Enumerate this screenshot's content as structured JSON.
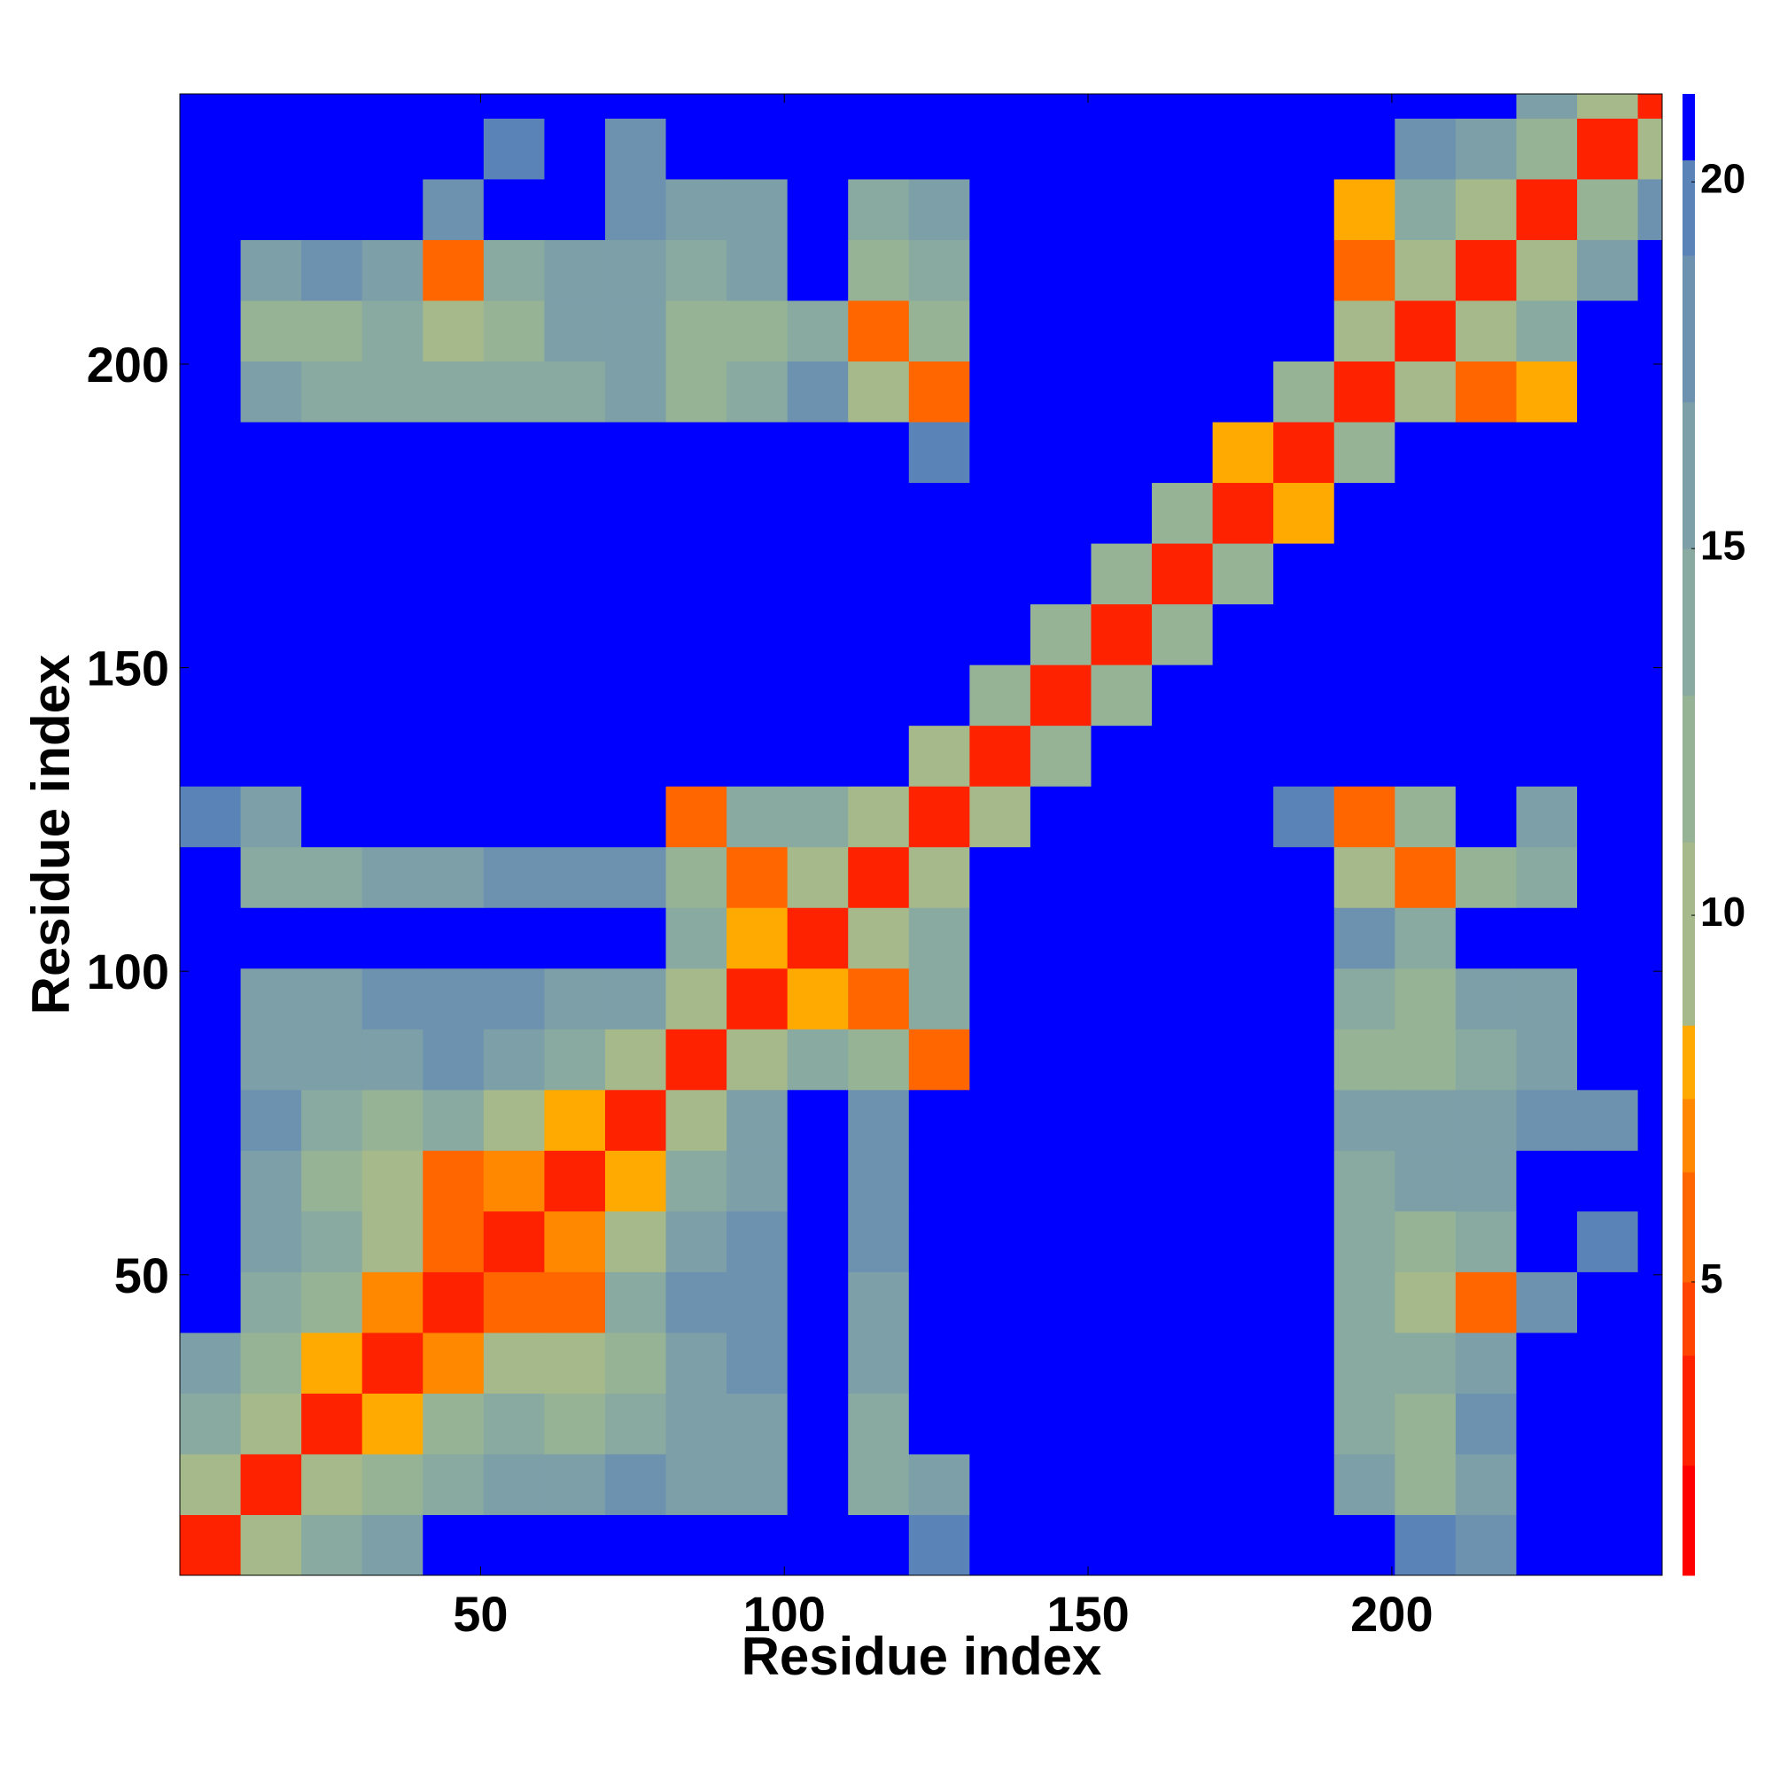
{
  "chart_data": {
    "type": "heatmap",
    "xlabel": "Residue index",
    "ylabel": "Residue index",
    "xlim": [
      0.5,
      244.5
    ],
    "ylim": [
      0.5,
      244.5
    ],
    "xticks": [
      50,
      100,
      150,
      200
    ],
    "yticks": [
      50,
      100,
      150,
      200
    ],
    "xbins": [
      0.5,
      10.5,
      20.5,
      30.5,
      40.5,
      50.5,
      60.5,
      70.5,
      80.5,
      90.5,
      100.5,
      110.5,
      120.5,
      130.5,
      140.5,
      150.5,
      160.5,
      170.5,
      180.5,
      190.5,
      200.5,
      210.5,
      220.5,
      230.5,
      240.5,
      244.5
    ],
    "ybins": [
      0.5,
      10.5,
      20.5,
      30.5,
      40.5,
      50.5,
      60.5,
      70.5,
      80.5,
      90.5,
      100.5,
      110.5,
      120.5,
      130.5,
      140.5,
      150.5,
      160.5,
      170.5,
      180.5,
      190.5,
      200.5,
      210.5,
      220.5,
      230.5,
      240.5,
      244.5
    ],
    "z": [
      [
        3,
        10,
        13,
        16,
        21,
        21,
        21,
        21,
        21,
        21,
        21,
        21,
        19,
        21,
        21,
        21,
        21,
        21,
        21,
        21,
        19,
        18,
        21,
        21,
        21
      ],
      [
        10,
        3,
        9,
        12,
        14,
        15,
        16,
        17,
        16,
        15,
        21,
        14,
        15,
        21,
        21,
        21,
        21,
        21,
        21,
        15,
        12,
        16,
        21,
        21,
        21
      ],
      [
        13,
        9,
        3,
        8,
        11,
        13,
        12,
        13,
        15,
        16,
        21,
        14,
        21,
        21,
        21,
        21,
        21,
        21,
        21,
        14,
        12,
        17,
        21,
        21,
        21
      ],
      [
        16,
        12,
        8,
        3,
        7,
        10,
        9,
        12,
        16,
        17,
        21,
        15,
        21,
        21,
        21,
        21,
        21,
        21,
        21,
        14,
        14,
        15,
        21,
        21,
        21
      ],
      [
        21,
        14,
        11,
        7,
        3,
        6,
        6,
        14,
        17,
        17,
        21,
        16,
        21,
        21,
        21,
        21,
        21,
        21,
        21,
        13,
        10,
        6,
        18,
        21,
        21
      ],
      [
        21,
        15,
        13,
        10,
        6,
        3,
        7,
        10,
        15,
        17,
        21,
        17,
        21,
        21,
        21,
        21,
        21,
        21,
        21,
        13,
        12,
        13,
        21,
        19,
        21
      ],
      [
        21,
        16,
        12,
        9,
        6,
        7,
        3,
        8,
        14,
        16,
        21,
        17,
        21,
        21,
        21,
        21,
        21,
        21,
        21,
        14,
        15,
        16,
        21,
        21,
        21
      ],
      [
        21,
        17,
        13,
        12,
        14,
        10,
        8,
        3,
        9,
        16,
        21,
        18,
        21,
        21,
        21,
        21,
        21,
        21,
        21,
        16,
        16,
        15,
        17,
        18,
        21
      ],
      [
        21,
        16,
        15,
        16,
        17,
        15,
        14,
        9,
        3,
        10,
        13,
        12,
        6,
        21,
        21,
        21,
        21,
        21,
        21,
        12,
        12,
        13,
        15,
        21,
        21
      ],
      [
        21,
        15,
        16,
        17,
        17,
        17,
        16,
        16,
        10,
        3,
        8,
        6,
        13,
        21,
        21,
        21,
        21,
        21,
        21,
        13,
        12,
        15,
        16,
        21,
        21
      ],
      [
        21,
        21,
        21,
        21,
        21,
        21,
        21,
        21,
        13,
        8,
        3,
        9,
        13,
        21,
        21,
        21,
        21,
        21,
        21,
        18,
        14,
        21,
        21,
        21,
        21
      ],
      [
        21,
        14,
        14,
        15,
        16,
        17,
        17,
        18,
        12,
        6,
        9,
        3,
        10,
        21,
        21,
        21,
        21,
        21,
        21,
        10,
        6,
        12,
        14,
        21,
        21
      ],
      [
        19,
        15,
        21,
        21,
        21,
        21,
        21,
        21,
        6,
        13,
        13,
        10,
        3,
        9,
        21,
        21,
        21,
        21,
        19,
        5,
        12,
        21,
        16,
        21,
        21
      ],
      [
        21,
        21,
        21,
        21,
        21,
        21,
        21,
        21,
        21,
        21,
        21,
        21,
        9,
        3,
        11,
        21,
        21,
        21,
        21,
        21,
        21,
        21,
        21,
        21,
        21
      ],
      [
        21,
        21,
        21,
        21,
        21,
        21,
        21,
        21,
        21,
        21,
        21,
        21,
        21,
        11,
        3,
        11,
        21,
        21,
        21,
        21,
        21,
        21,
        21,
        21,
        21
      ],
      [
        21,
        21,
        21,
        21,
        21,
        21,
        21,
        21,
        21,
        21,
        21,
        21,
        21,
        21,
        11,
        3,
        12,
        21,
        21,
        21,
        21,
        21,
        21,
        21,
        21
      ],
      [
        21,
        21,
        21,
        21,
        21,
        21,
        21,
        21,
        21,
        21,
        21,
        21,
        21,
        21,
        21,
        12,
        3,
        11,
        21,
        21,
        21,
        21,
        21,
        21,
        21
      ],
      [
        21,
        21,
        21,
        21,
        21,
        21,
        21,
        21,
        21,
        21,
        21,
        21,
        21,
        21,
        21,
        21,
        11,
        3,
        8,
        21,
        21,
        21,
        21,
        21,
        21
      ],
      [
        21,
        21,
        21,
        21,
        21,
        21,
        21,
        21,
        21,
        21,
        21,
        21,
        19,
        21,
        21,
        21,
        21,
        8,
        3,
        11,
        21,
        21,
        21,
        21,
        21
      ],
      [
        21,
        15,
        14,
        14,
        13,
        13,
        14,
        16,
        12,
        13,
        18,
        10,
        5,
        21,
        21,
        21,
        21,
        21,
        11,
        3,
        9,
        6,
        8,
        21,
        21
      ],
      [
        21,
        12,
        12,
        14,
        10,
        12,
        15,
        16,
        12,
        12,
        14,
        6,
        12,
        21,
        21,
        21,
        21,
        21,
        21,
        9,
        3,
        9,
        14,
        21,
        21
      ],
      [
        21,
        16,
        17,
        15,
        6,
        13,
        16,
        15,
        13,
        15,
        21,
        12,
        13,
        21,
        21,
        21,
        21,
        21,
        21,
        6,
        9,
        3,
        10,
        16,
        21
      ],
      [
        21,
        21,
        21,
        21,
        18,
        21,
        21,
        17,
        15,
        16,
        21,
        14,
        16,
        21,
        21,
        21,
        21,
        21,
        21,
        8,
        14,
        10,
        3,
        11,
        17
      ],
      [
        21,
        21,
        21,
        21,
        21,
        19,
        21,
        18,
        21,
        21,
        21,
        21,
        21,
        21,
        21,
        21,
        21,
        21,
        21,
        21,
        17,
        15,
        11,
        3,
        9
      ],
      [
        21,
        21,
        21,
        21,
        21,
        21,
        21,
        21,
        21,
        21,
        21,
        21,
        21,
        21,
        21,
        21,
        21,
        21,
        21,
        21,
        21,
        21,
        16,
        9,
        3
      ]
    ],
    "clim": [
      1,
      21.2
    ],
    "colorbar_ticks": [
      5,
      10,
      15,
      20
    ],
    "colorscale": [
      [
        1,
        "#ff0000"
      ],
      [
        2.5,
        "#ff2200"
      ],
      [
        4,
        "#ff4400"
      ],
      [
        5,
        "#ff6600"
      ],
      [
        6.5,
        "#ff8800"
      ],
      [
        7.5,
        "#ffaa00"
      ],
      [
        8.5,
        "#a6b98a"
      ],
      [
        11,
        "#96b396"
      ],
      [
        13,
        "#88aaa0"
      ],
      [
        15,
        "#7d9fa8"
      ],
      [
        17,
        "#6c92b0"
      ],
      [
        19,
        "#5a84b8"
      ],
      [
        20.3,
        "#0000ff"
      ]
    ]
  }
}
